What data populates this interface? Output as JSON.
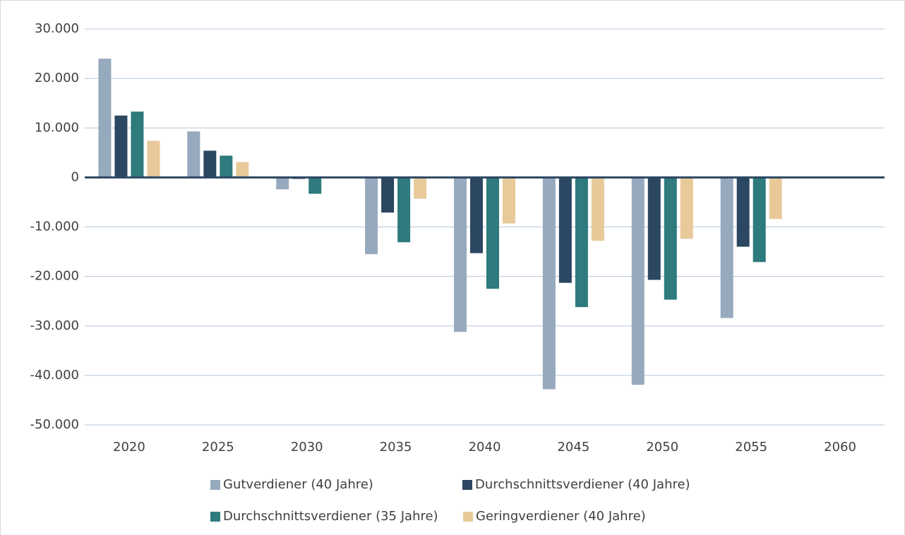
{
  "chart_data": {
    "type": "bar",
    "categories": [
      "2020",
      "2025",
      "2030",
      "2035",
      "2040",
      "2045",
      "2050",
      "2055",
      "2060"
    ],
    "series": [
      {
        "name": "Gutverdiener (40 Jahre)",
        "color": "#97a9bd",
        "values": [
          24000,
          9300,
          -2400,
          -15500,
          -31200,
          -42800,
          -41900,
          -28400,
          null
        ]
      },
      {
        "name": "Durchschnittsverdiener (40 Jahre)",
        "color": "#2c4762",
        "values": [
          12500,
          5400,
          -300,
          -7100,
          -15300,
          -21300,
          -20700,
          -14000,
          null
        ]
      },
      {
        "name": "Durchschnittsverdiener (35 Jahre)",
        "color": "#2e7a7c",
        "values": [
          13300,
          4400,
          -3300,
          -13100,
          -22500,
          -26200,
          -24700,
          -17100,
          null
        ]
      },
      {
        "name": "Geringverdiener (40 Jahre)",
        "color": "#e8c999",
        "values": [
          7400,
          3100,
          0,
          -4300,
          -9300,
          -12800,
          -12400,
          -8400,
          null
        ]
      }
    ],
    "ylim": [
      -50000,
      30000
    ],
    "yticks": [
      {
        "value": 30000,
        "label": "30.000"
      },
      {
        "value": 20000,
        "label": "20.000"
      },
      {
        "value": 10000,
        "label": "10.000"
      },
      0,
      {
        "value": -10000,
        "label": "-10.000"
      },
      {
        "value": -20000,
        "label": "-20.000"
      },
      {
        "value": -30000,
        "label": "-30.000"
      },
      {
        "value": -40000,
        "label": "-40.000"
      },
      {
        "value": -50000,
        "label": "-50.000"
      }
    ],
    "grid": true,
    "legend": "bottom"
  }
}
